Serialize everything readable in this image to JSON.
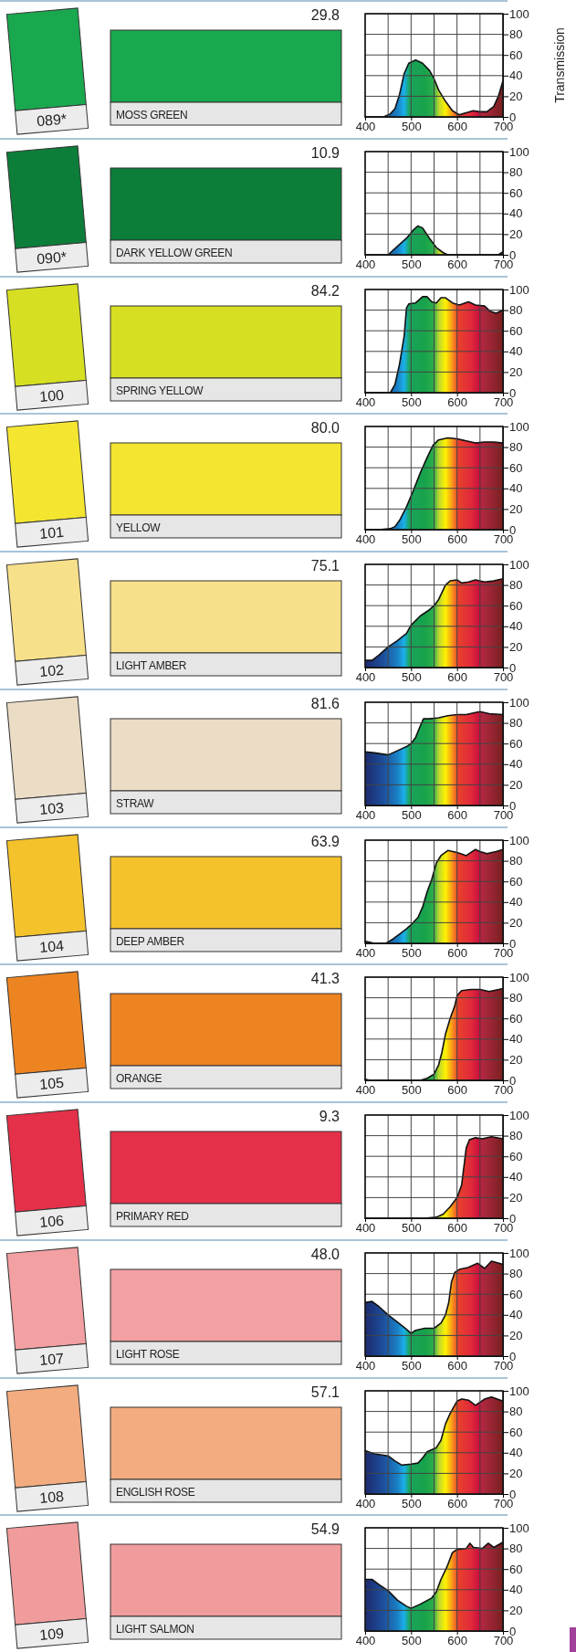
{
  "chart_data": [
    {
      "type": "area",
      "annotations": [
        "29.8",
        "089*",
        "MOSS GREEN"
      ],
      "ylabel": "Transmission",
      "xlim": [
        400,
        700
      ],
      "xticks": [
        400,
        500,
        600,
        700
      ],
      "ylim": [
        0,
        100
      ],
      "yticks": [
        0,
        20,
        40,
        60,
        80,
        100
      ],
      "grid": true,
      "series": [
        {
          "color": "#111111",
          "x": [
            400,
            440,
            455,
            465,
            475,
            485,
            495,
            510,
            525,
            540,
            550,
            560,
            575,
            590,
            605,
            620,
            635,
            650,
            665,
            680,
            690,
            700
          ],
          "values": [
            0,
            0,
            3,
            8,
            22,
            42,
            52,
            55,
            52,
            45,
            37,
            26,
            15,
            6,
            2,
            4,
            6,
            5,
            5,
            10,
            20,
            35
          ]
        }
      ]
    },
    {
      "type": "area",
      "annotations": [
        "10.9",
        "090*",
        "DARK YELLOW GREEN"
      ],
      "xlim": [
        400,
        700
      ],
      "xticks": [
        400,
        500,
        600,
        700
      ],
      "ylim": [
        0,
        100
      ],
      "yticks": [
        0,
        20,
        40,
        60,
        80,
        100
      ],
      "grid": true,
      "series": [
        {
          "color": "#111111",
          "x": [
            400,
            450,
            470,
            490,
            505,
            515,
            525,
            540,
            555,
            570,
            580,
            690,
            700
          ],
          "values": [
            0,
            0,
            8,
            16,
            24,
            28,
            26,
            16,
            7,
            2,
            0,
            0,
            3
          ]
        }
      ]
    },
    {
      "type": "area",
      "annotations": [
        "84.2",
        "100",
        "SPRING YELLOW"
      ],
      "xlim": [
        400,
        700
      ],
      "xticks": [
        400,
        500,
        600,
        700
      ],
      "ylim": [
        0,
        100
      ],
      "yticks": [
        0,
        20,
        40,
        60,
        80,
        100
      ],
      "grid": true,
      "series": [
        {
          "color": "#111111",
          "x": [
            400,
            455,
            465,
            475,
            485,
            490,
            495,
            510,
            525,
            535,
            545,
            555,
            565,
            575,
            590,
            605,
            625,
            640,
            660,
            672,
            685,
            700
          ],
          "values": [
            0,
            0,
            8,
            28,
            55,
            82,
            86,
            87,
            93,
            93,
            88,
            87,
            92,
            92,
            87,
            85,
            88,
            85,
            84,
            79,
            77,
            80
          ]
        }
      ]
    },
    {
      "type": "area",
      "annotations": [
        "80.0",
        "101",
        "YELLOW"
      ],
      "xlim": [
        400,
        700
      ],
      "xticks": [
        400,
        500,
        600,
        700
      ],
      "ylim": [
        0,
        100
      ],
      "yticks": [
        0,
        20,
        40,
        60,
        80,
        100
      ],
      "grid": true,
      "series": [
        {
          "color": "#111111",
          "x": [
            400,
            430,
            455,
            465,
            475,
            490,
            505,
            520,
            535,
            548,
            560,
            580,
            600,
            620,
            640,
            660,
            680,
            700
          ],
          "values": [
            0,
            0,
            1,
            3,
            9,
            22,
            38,
            55,
            70,
            82,
            87,
            89,
            88,
            86,
            84,
            85,
            85,
            84
          ]
        }
      ]
    },
    {
      "type": "area",
      "annotations": [
        "75.1",
        "102",
        "LIGHT AMBER"
      ],
      "xlim": [
        400,
        700
      ],
      "xticks": [
        400,
        500,
        600,
        700
      ],
      "ylim": [
        0,
        100
      ],
      "yticks": [
        0,
        20,
        40,
        60,
        80,
        100
      ],
      "grid": true,
      "series": [
        {
          "color": "#111111",
          "x": [
            400,
            415,
            430,
            450,
            470,
            490,
            500,
            520,
            540,
            550,
            560,
            575,
            585,
            600,
            610,
            625,
            640,
            660,
            680,
            700
          ],
          "values": [
            7,
            7,
            12,
            20,
            26,
            33,
            41,
            50,
            56,
            60,
            66,
            80,
            84,
            85,
            82,
            83,
            85,
            83,
            84,
            86
          ]
        }
      ]
    },
    {
      "type": "area",
      "annotations": [
        "81.6",
        "103",
        "STRAW"
      ],
      "xlim": [
        400,
        700
      ],
      "xticks": [
        400,
        500,
        600,
        700
      ],
      "ylim": [
        0,
        100
      ],
      "yticks": [
        0,
        20,
        40,
        60,
        80,
        100
      ],
      "grid": true,
      "series": [
        {
          "color": "#111111",
          "x": [
            400,
            420,
            450,
            470,
            490,
            500,
            510,
            520,
            527,
            540,
            560,
            580,
            600,
            620,
            640,
            650,
            670,
            700
          ],
          "values": [
            52,
            51,
            49,
            53,
            57,
            60,
            66,
            77,
            84,
            84,
            85,
            87,
            88,
            88,
            90,
            91,
            89,
            88
          ]
        }
      ]
    },
    {
      "type": "area",
      "annotations": [
        "63.9",
        "104",
        "DEEP AMBER"
      ],
      "xlim": [
        400,
        700
      ],
      "xticks": [
        400,
        500,
        600,
        700
      ],
      "ylim": [
        0,
        100
      ],
      "yticks": [
        0,
        20,
        40,
        60,
        80,
        100
      ],
      "grid": true,
      "series": [
        {
          "color": "#111111",
          "x": [
            400,
            410,
            420,
            445,
            460,
            475,
            490,
            500,
            515,
            525,
            535,
            545,
            550,
            555,
            565,
            580,
            600,
            620,
            640,
            650,
            665,
            685,
            700
          ],
          "values": [
            2,
            1,
            0,
            0,
            4,
            9,
            14,
            18,
            25,
            35,
            50,
            62,
            70,
            78,
            85,
            90,
            88,
            85,
            91,
            89,
            87,
            89,
            91
          ]
        }
      ]
    },
    {
      "type": "area",
      "annotations": [
        "41.3",
        "105",
        "ORANGE"
      ],
      "xlim": [
        400,
        700
      ],
      "xticks": [
        400,
        500,
        600,
        700
      ],
      "ylim": [
        0,
        100
      ],
      "yticks": [
        0,
        20,
        40,
        60,
        80,
        100
      ],
      "grid": true,
      "series": [
        {
          "color": "#111111",
          "x": [
            400,
            410,
            520,
            535,
            550,
            560,
            567,
            575,
            585,
            595,
            600,
            610,
            630,
            650,
            670,
            700
          ],
          "values": [
            1,
            0,
            0,
            2,
            6,
            15,
            27,
            45,
            60,
            72,
            82,
            87,
            88,
            88,
            86,
            89
          ]
        }
      ]
    },
    {
      "type": "area",
      "annotations": [
        "9.3",
        "106",
        "PRIMARY RED"
      ],
      "xlim": [
        400,
        700
      ],
      "xticks": [
        400,
        500,
        600,
        700
      ],
      "ylim": [
        0,
        100
      ],
      "yticks": [
        0,
        20,
        40,
        60,
        80,
        100
      ],
      "grid": true,
      "series": [
        {
          "color": "#111111",
          "x": [
            400,
            530,
            555,
            570,
            585,
            600,
            610,
            615,
            620,
            627,
            640,
            655,
            675,
            700
          ],
          "values": [
            0,
            0,
            1,
            4,
            11,
            20,
            32,
            50,
            68,
            76,
            78,
            77,
            79,
            77
          ]
        }
      ]
    },
    {
      "type": "area",
      "annotations": [
        "48.0",
        "107",
        "LIGHT ROSE"
      ],
      "xlim": [
        400,
        700
      ],
      "xticks": [
        400,
        500,
        600,
        700
      ],
      "ylim": [
        0,
        100
      ],
      "yticks": [
        0,
        20,
        40,
        60,
        80,
        100
      ],
      "grid": true,
      "series": [
        {
          "color": "#111111",
          "x": [
            400,
            415,
            430,
            450,
            470,
            490,
            500,
            510,
            530,
            550,
            565,
            575,
            582,
            588,
            595,
            605,
            625,
            645,
            660,
            675,
            700
          ],
          "values": [
            52,
            53,
            48,
            40,
            33,
            26,
            22,
            25,
            27,
            27,
            32,
            40,
            52,
            72,
            81,
            84,
            86,
            90,
            85,
            92,
            89
          ]
        }
      ]
    },
    {
      "type": "area",
      "annotations": [
        "57.1",
        "108",
        "ENGLISH ROSE"
      ],
      "xlim": [
        400,
        700
      ],
      "xticks": [
        400,
        500,
        600,
        700
      ],
      "ylim": [
        0,
        100
      ],
      "yticks": [
        0,
        20,
        40,
        60,
        80,
        100
      ],
      "grid": true,
      "series": [
        {
          "color": "#111111",
          "x": [
            400,
            420,
            450,
            465,
            480,
            500,
            515,
            525,
            535,
            555,
            565,
            575,
            585,
            600,
            610,
            625,
            640,
            660,
            675,
            700
          ],
          "values": [
            42,
            39,
            37,
            32,
            28,
            29,
            30,
            35,
            41,
            45,
            52,
            68,
            78,
            90,
            92,
            91,
            86,
            92,
            94,
            90
          ]
        }
      ]
    },
    {
      "type": "area",
      "annotations": [
        "54.9",
        "109",
        "LIGHT SALMON"
      ],
      "xlim": [
        400,
        700
      ],
      "xticks": [
        400,
        500,
        600,
        700
      ],
      "ylim": [
        0,
        100
      ],
      "yticks": [
        0,
        20,
        40,
        60,
        80,
        100
      ],
      "grid": true,
      "series": [
        {
          "color": "#111111",
          "x": [
            400,
            415,
            430,
            450,
            470,
            490,
            500,
            520,
            545,
            555,
            565,
            578,
            590,
            600,
            620,
            628,
            636,
            655,
            668,
            680,
            700
          ],
          "values": [
            50,
            50,
            45,
            39,
            30,
            24,
            22,
            26,
            32,
            38,
            50,
            62,
            76,
            79,
            80,
            85,
            81,
            80,
            85,
            81,
            86
          ]
        }
      ]
    }
  ]
}
